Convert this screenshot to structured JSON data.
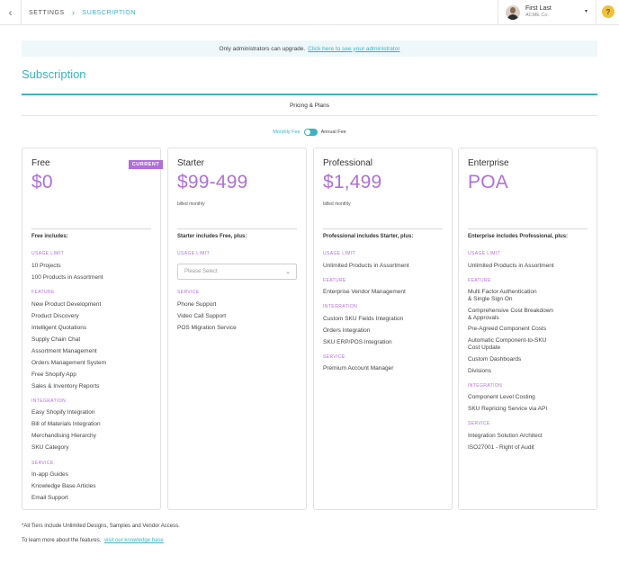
{
  "topbar": {
    "back_glyph": "‹",
    "breadcrumb": [
      "SETTINGS",
      "SUBSCRIPTION"
    ],
    "separator": "›",
    "user_name": "First Last",
    "user_company": "ACME Co.",
    "caret": "▾",
    "help": "?"
  },
  "notice": {
    "text": "Only administrators can upgrade.",
    "link": "Click here to see your administrator"
  },
  "page_title": "Subscription",
  "subtitle": "Pricing & Plans",
  "toggle": {
    "left_label": "Monthly Fee",
    "right_label": "Annual Fee"
  },
  "accent_color": "#37b5c3",
  "price_color": "#b06fd9",
  "plans": [
    {
      "name": "Free",
      "price": "$0",
      "badge": "CURRENT",
      "billed": "",
      "includes": "Free includes:",
      "usage_label": "USAGE LIMIT",
      "usage": [
        "10  Projects",
        "100 Products in Assortment"
      ],
      "feature_label": "FEATURE",
      "features": [
        "New Product Development",
        "Product Discovery",
        "Intelligent Quotations",
        "Supply Chain Chat",
        "Assortment Management",
        "Orders Management System",
        "Free Shopify App",
        "Sales & Inventory Reports"
      ],
      "integration_label": "INTEGRATION",
      "integrations": [
        "Easy Shopify Integration",
        "Bill of Materials Integration",
        "Merchandising Hierarchy",
        "SKU Category"
      ],
      "service_label": "SERVICE",
      "services": [
        "In-app Guides",
        "Knowledge Base Articles",
        "Email Support"
      ]
    },
    {
      "name": "Starter",
      "price": "$99-499",
      "billed": "billed monthly",
      "includes": "Starter includes Free, plus:",
      "usage_label": "USAGE LIMIT",
      "select_placeholder": "Please Select",
      "service_label": "SERVICE",
      "services": [
        "Phone Support",
        "Video Call Support",
        "POS Migration Service"
      ]
    },
    {
      "name": "Professional",
      "price": "$1,499",
      "billed": "billed monthly",
      "includes": "Professional includes Starter, plus:",
      "usage_label": "USAGE LIMIT",
      "usage": [
        "Unlimited Products in Assortment"
      ],
      "feature_label": "FEATURE",
      "features": [
        "Enterprise Vendor Management"
      ],
      "integration_label": "INTEGRATION",
      "integrations": [
        "Custom SKU Fields Integration",
        "Orders Integration",
        "SKU ERP/POS Integration"
      ],
      "service_label": "SERVICE",
      "services": [
        "Premium Account Manager"
      ]
    },
    {
      "name": "Enterprise",
      "price": "POA",
      "billed": "",
      "includes": "Enterprise includes Professional, plus:",
      "usage_label": "USAGE LIMIT",
      "usage": [
        "Unlimited Products in Assortment"
      ],
      "feature_label": "FEATURE",
      "features": [
        "Multi Factor Authentication",
        "& Single Sign On",
        "Comprehensive Cost Breakdown",
        "& Approvals",
        "Pre-Agreed Component Costs",
        "Automatic Component-to-SKU",
        "Cost Update",
        "Custom Dashboards",
        "Divisions"
      ],
      "integration_label": "INTEGRATION",
      "integrations": [
        "Component Level Costing",
        "SKU Repricing Service via API"
      ],
      "service_label": "SERVICE",
      "services": [
        "Integration Solution Architect",
        "ISO27001 - Right of Audit"
      ]
    }
  ],
  "footer": {
    "note": "*All Tiers include Unlimited Designs, Samples and Vendor Access.",
    "learn_text": "To learn more about the features,",
    "learn_link": "visit our knowledge base"
  }
}
